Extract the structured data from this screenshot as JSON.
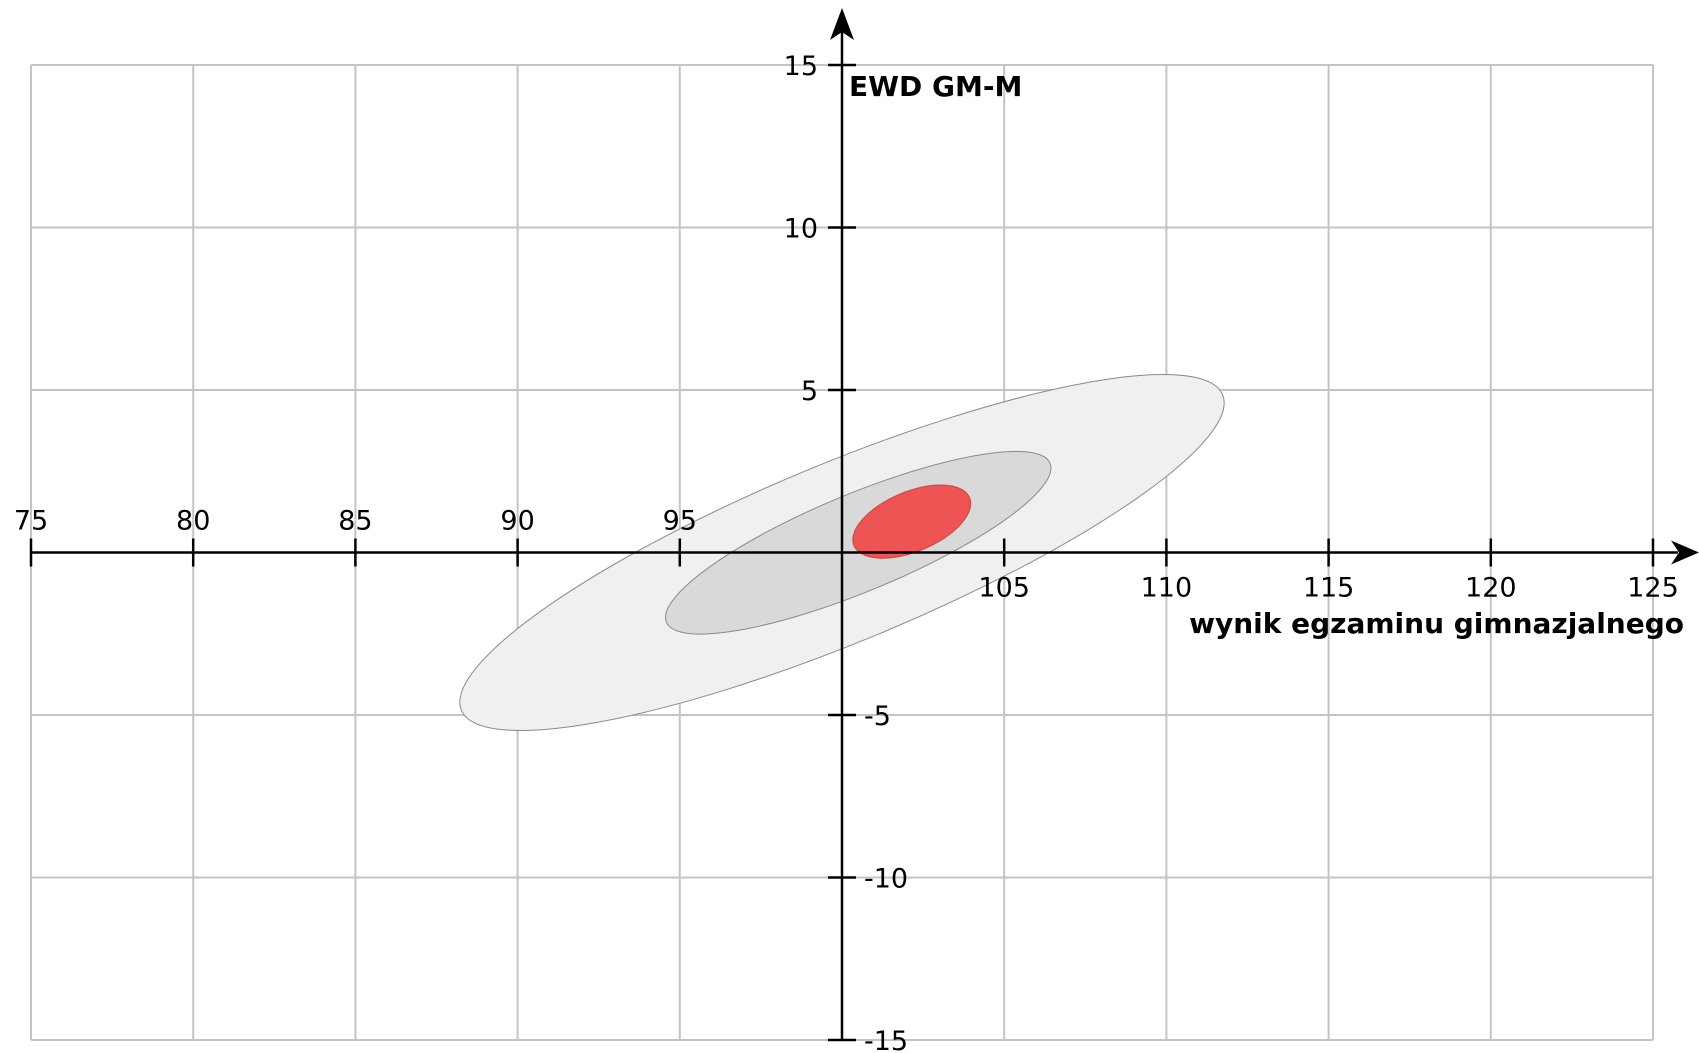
{
  "chart_data": {
    "type": "scatter",
    "title": "",
    "xlabel": "wynik egzaminu gimnazjalnego",
    "ylabel": "EWD GM-M",
    "xlim": [
      75,
      125
    ],
    "ylim": [
      -15,
      15
    ],
    "x_ticks": [
      75,
      80,
      85,
      90,
      95,
      105,
      110,
      115,
      120,
      125
    ],
    "y_ticks": [
      15,
      10,
      5,
      -5,
      -10,
      -15
    ],
    "x_tick_labels": [
      "75",
      "80",
      "85",
      "90",
      "95",
      "105",
      "110",
      "115",
      "120",
      "125"
    ],
    "y_tick_labels": [
      "15",
      "10",
      "5",
      "-5",
      "-10",
      "-15"
    ],
    "grid": true,
    "ellipses": [
      {
        "name": "",
        "center_x": 100,
        "center_y": 0,
        "rx": 12.7,
        "ry": 2.75,
        "angle_deg": 22.5,
        "color": "#f0f0f0"
      },
      {
        "name": "",
        "center_x": 100.5,
        "center_y": 0.3,
        "rx": 6.4,
        "ry": 1.5,
        "angle_deg": 22.5,
        "color": "#d9d9d9"
      },
      {
        "name": "",
        "center_x": 102.15,
        "center_y": 0.95,
        "rx": 1.93,
        "ry": 0.92,
        "angle_deg": 22.5,
        "color": "#ef5454"
      }
    ]
  }
}
